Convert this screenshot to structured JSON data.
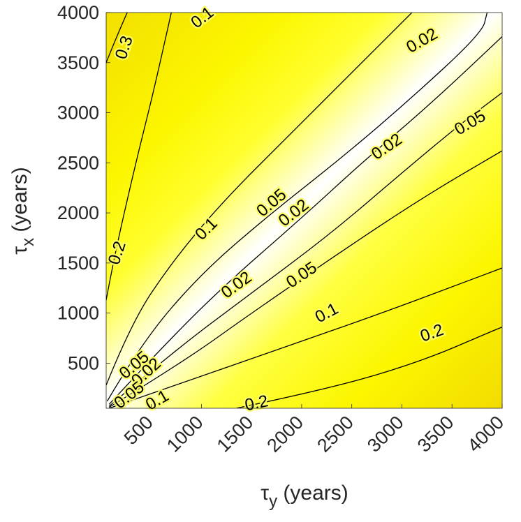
{
  "chart_data": {
    "type": "contour",
    "title": "",
    "xlabel": {
      "greek": "τ",
      "subscript": "y",
      "unit": " (years)"
    },
    "ylabel": {
      "greek": "τ",
      "subscript": "x",
      "unit": " (years)"
    },
    "xlim": [
      50,
      4000
    ],
    "ylim": [
      50,
      4000
    ],
    "x_ticks": [
      500,
      1000,
      1500,
      2000,
      2500,
      3000,
      3500,
      4000
    ],
    "y_ticks": [
      500,
      1000,
      1500,
      2000,
      2500,
      3000,
      3500,
      4000
    ],
    "x_tick_labels": [
      "500",
      "1000",
      "1500",
      "2000",
      "2500",
      "3000",
      "3500",
      "4000"
    ],
    "y_tick_labels": [
      "500",
      "1000",
      "1500",
      "2000",
      "2500",
      "3000",
      "3500",
      "4000"
    ],
    "colormap": {
      "low": "#ffffff",
      "high": "#ffff00",
      "max": "#f2dc00"
    },
    "contour_levels": [
      "0.02",
      "0.05",
      "0.1",
      "0.2",
      "0.3"
    ],
    "contours": [
      {
        "level": "0.3",
        "points": [
          [
            50,
            3500
          ],
          [
            130,
            3700
          ],
          [
            260,
            4000
          ]
        ]
      },
      {
        "level": "0.2",
        "points": [
          [
            50,
            1130
          ],
          [
            120,
            1500
          ],
          [
            230,
            2000
          ],
          [
            370,
            2600
          ],
          [
            520,
            3200
          ],
          [
            700,
            4000
          ]
        ]
      },
      {
        "level": "0.1",
        "points": [
          [
            50,
            280
          ],
          [
            300,
            900
          ],
          [
            700,
            1500
          ],
          [
            1200,
            2100
          ],
          [
            1900,
            2800
          ],
          [
            2600,
            3500
          ],
          [
            3100,
            4000
          ]
        ]
      },
      {
        "level": "0.05",
        "points": [
          [
            60,
            120
          ],
          [
            400,
            700
          ],
          [
            1000,
            1400
          ],
          [
            1700,
            2000
          ],
          [
            2400,
            2550
          ],
          [
            3100,
            3150
          ],
          [
            3800,
            3800
          ],
          [
            3850,
            4000
          ]
        ]
      },
      {
        "level": "0.02",
        "points": [
          [
            80,
            90
          ],
          [
            600,
            650
          ],
          [
            1200,
            1250
          ],
          [
            2000,
            1950
          ],
          [
            2600,
            2500
          ],
          [
            3300,
            3100
          ],
          [
            4000,
            3760
          ]
        ]
      },
      {
        "level": "0.02",
        "points": [
          [
            80,
            70
          ],
          [
            700,
            600
          ],
          [
            1500,
            1200
          ],
          [
            2300,
            1800
          ],
          [
            3000,
            2400
          ],
          [
            3600,
            2900
          ],
          [
            4000,
            3200
          ]
        ]
      },
      {
        "level": "0.05",
        "points": [
          [
            80,
            60
          ],
          [
            800,
            500
          ],
          [
            1500,
            1000
          ],
          [
            2300,
            1550
          ],
          [
            3200,
            2150
          ],
          [
            4000,
            2620
          ]
        ]
      },
      {
        "level": "0.1",
        "points": [
          [
            80,
            50
          ],
          [
            800,
            300
          ],
          [
            1800,
            650
          ],
          [
            2800,
            1000
          ],
          [
            3600,
            1300
          ],
          [
            4000,
            1450
          ]
        ]
      },
      {
        "level": "0.2",
        "points": [
          [
            1350,
            50
          ],
          [
            2300,
            250
          ],
          [
            3200,
            520
          ],
          [
            3900,
            820
          ],
          [
            4000,
            860
          ]
        ]
      }
    ],
    "labels": [
      {
        "text": "0.3",
        "at": [
          230,
          3650
        ],
        "angle": -72
      },
      {
        "text": "0.2",
        "at": [
          160,
          1600
        ],
        "angle": -72
      },
      {
        "text": "0.1",
        "at": [
          1010,
          3950
        ],
        "angle": -38
      },
      {
        "text": "0.02",
        "at": [
          3200,
          3720
        ],
        "angle": -30
      },
      {
        "text": "0.1",
        "at": [
          1050,
          1840
        ],
        "angle": -45
      },
      {
        "text": "0.05",
        "at": [
          1700,
          2100
        ],
        "angle": -40
      },
      {
        "text": "0.02",
        "at": [
          1920,
          2000
        ],
        "angle": -38
      },
      {
        "text": "0.02",
        "at": [
          2850,
          2660
        ],
        "angle": -34
      },
      {
        "text": "0.05",
        "at": [
          3680,
          2900
        ],
        "angle": -30
      },
      {
        "text": "0.05",
        "at": [
          2000,
          1380
        ],
        "angle": -34
      },
      {
        "text": "0.02",
        "at": [
          1350,
          1280
        ],
        "angle": -36
      },
      {
        "text": "0.1",
        "at": [
          2250,
          1000
        ],
        "angle": -28
      },
      {
        "text": "0.2",
        "at": [
          3300,
          800
        ],
        "angle": -20
      },
      {
        "text": "0.2",
        "at": [
          1550,
          100
        ],
        "angle": -12
      },
      {
        "text": "0.05",
        "at": [
          330,
          480
        ],
        "angle": -40
      },
      {
        "text": "0.02",
        "at": [
          450,
          410
        ],
        "angle": -42
      },
      {
        "text": "0.05",
        "at": [
          280,
          180
        ],
        "angle": -38
      },
      {
        "text": "0.1",
        "at": [
          560,
          130
        ],
        "angle": -30
      }
    ]
  }
}
